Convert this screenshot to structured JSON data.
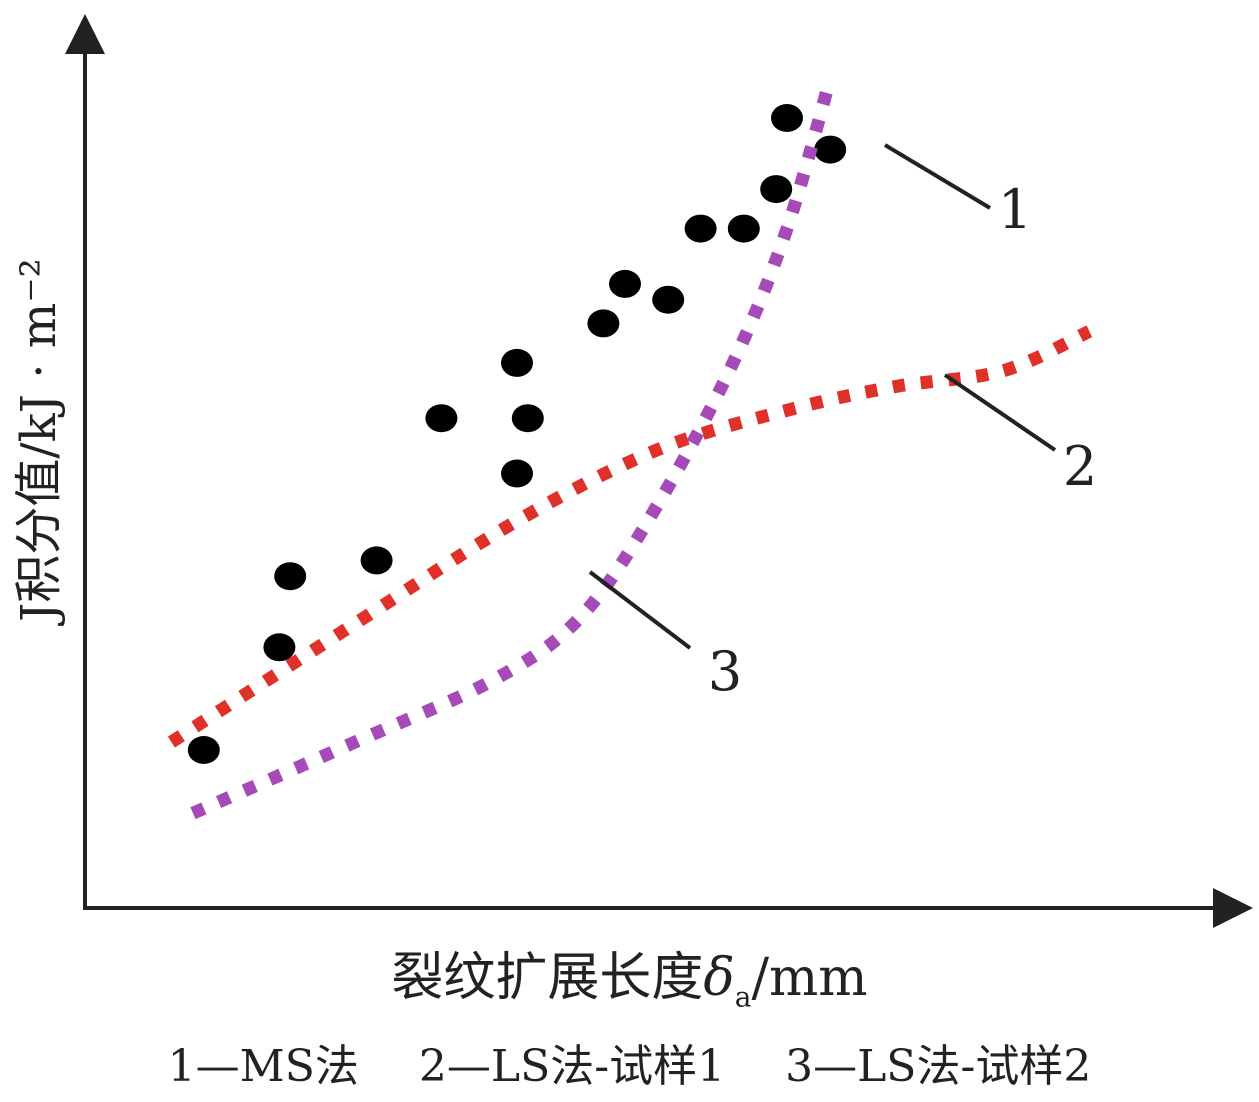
{
  "chart_data": {
    "type": "scatter",
    "ylabel": "J积分值/kJ · m⁻²",
    "xlabel_prefix": "裂纹扩展长度",
    "xlabel_symbol": "δ",
    "xlabel_subscript": "a",
    "xlabel_unit": "/mm",
    "grid": false,
    "axis_ticks": false,
    "series": [
      {
        "marker": "1",
        "style": "points",
        "color": "#000000",
        "points": [
          [
            0.11,
            0.2
          ],
          [
            0.18,
            0.33
          ],
          [
            0.19,
            0.42
          ],
          [
            0.27,
            0.44
          ],
          [
            0.33,
            0.62
          ],
          [
            0.4,
            0.55
          ],
          [
            0.4,
            0.69
          ],
          [
            0.41,
            0.62
          ],
          [
            0.48,
            0.74
          ],
          [
            0.5,
            0.79
          ],
          [
            0.54,
            0.77
          ],
          [
            0.57,
            0.86
          ],
          [
            0.61,
            0.86
          ],
          [
            0.64,
            0.91
          ],
          [
            0.65,
            1.0
          ],
          [
            0.69,
            0.96
          ]
        ]
      },
      {
        "marker": "2",
        "style": "dotted-line",
        "color": "#e0302a",
        "points": [
          [
            0.08,
            0.21
          ],
          [
            0.25,
            0.36
          ],
          [
            0.4,
            0.49
          ],
          [
            0.53,
            0.58
          ],
          [
            0.65,
            0.63
          ],
          [
            0.75,
            0.66
          ],
          [
            0.85,
            0.68
          ],
          [
            0.93,
            0.73
          ]
        ]
      },
      {
        "marker": "3",
        "style": "dotted-line",
        "color": "#a64ab9",
        "points": [
          [
            0.1,
            0.12
          ],
          [
            0.25,
            0.21
          ],
          [
            0.38,
            0.29
          ],
          [
            0.46,
            0.37
          ],
          [
            0.53,
            0.51
          ],
          [
            0.6,
            0.69
          ],
          [
            0.65,
            0.86
          ],
          [
            0.69,
            1.05
          ]
        ]
      }
    ],
    "legend": [
      {
        "text": "1—MS法"
      },
      {
        "text": "2—LS法-试样1"
      },
      {
        "text": "3—LS法-试样2"
      }
    ]
  }
}
